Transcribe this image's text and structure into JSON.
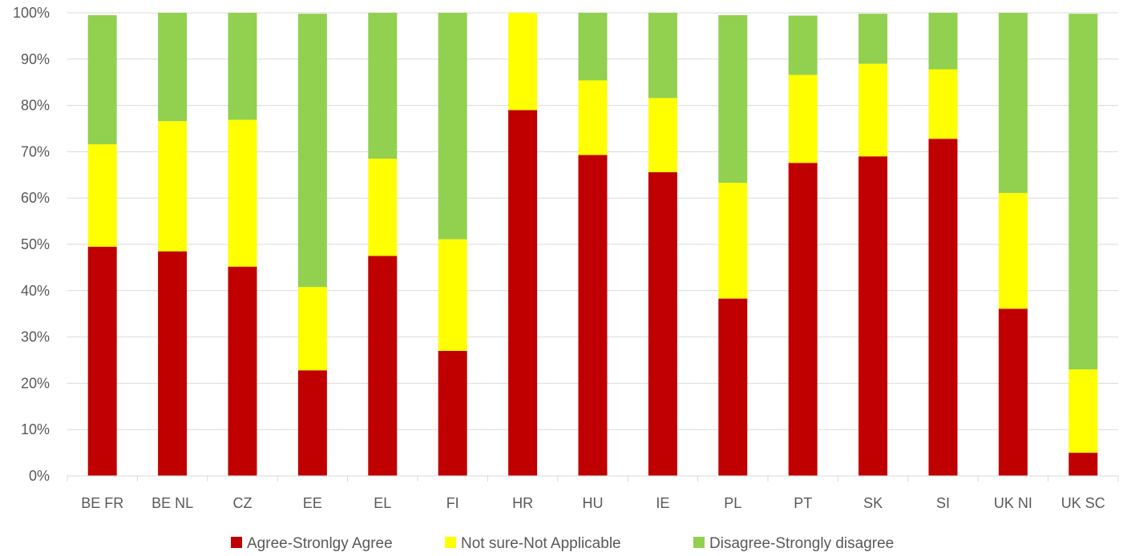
{
  "chart_data": {
    "type": "bar",
    "stacked": true,
    "percent_scale": true,
    "title": "",
    "xlabel": "",
    "ylabel": "",
    "ylim": [
      0,
      100
    ],
    "y_ticks": [
      "0%",
      "10%",
      "20%",
      "30%",
      "40%",
      "50%",
      "60%",
      "70%",
      "80%",
      "90%",
      "100%"
    ],
    "grid": true,
    "legend_position": "bottom",
    "categories": [
      "BE FR",
      "BE NL",
      "CZ",
      "EE",
      "EL",
      "FI",
      "HR",
      "HU",
      "IE",
      "PL",
      "PT",
      "SK",
      "SI",
      "UK NI",
      "UK SC"
    ],
    "series": [
      {
        "name": "Agree-Stronlgy Agree",
        "color": "#C00000",
        "values": [
          49.5,
          48.5,
          45.2,
          22.8,
          47.5,
          27.0,
          79.0,
          69.3,
          65.6,
          38.3,
          67.6,
          69.0,
          72.8,
          36.1,
          5.0
        ]
      },
      {
        "name": "Not sure-Not Applicable",
        "color": "#FFFF00",
        "values": [
          22.1,
          28.1,
          31.7,
          18.0,
          21.0,
          24.1,
          21.0,
          16.1,
          16.0,
          25.0,
          19.0,
          20.0,
          15.0,
          25.0,
          18.0
        ]
      },
      {
        "name": "Disagree-Strongly disagree",
        "color": "#92D050",
        "values": [
          27.9,
          23.4,
          23.1,
          59.0,
          31.5,
          48.9,
          0.0,
          14.6,
          18.4,
          36.2,
          12.8,
          10.8,
          12.2,
          38.9,
          76.8
        ]
      }
    ]
  },
  "colors": {
    "gridline": "#D9D9D9",
    "axis_text": "#595959"
  }
}
